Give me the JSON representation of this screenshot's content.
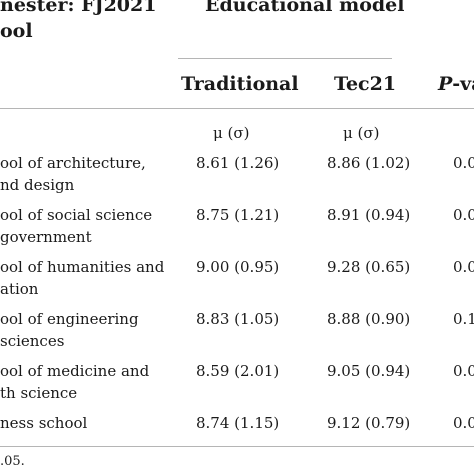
{
  "header": {
    "semester_label": "nester: FJ2021",
    "school_label": "ool",
    "group_label": "Educational model",
    "col_traditional": "Traditional",
    "col_tec21": "Tec21",
    "col_pval_prefix": "P",
    "col_pval_suffix": "-va"
  },
  "stats": {
    "traditional": "μ (σ)",
    "tec21": "μ (σ)"
  },
  "rows": [
    {
      "line1": "ool of architecture,",
      "line2": "nd design",
      "traditional": "8.61 (1.26)",
      "tec21": "8.86 (1.02)",
      "pvalue": "0.0"
    },
    {
      "line1": "ool of social science",
      "line2": "government",
      "traditional": "8.75 (1.21)",
      "tec21": "8.91 (0.94)",
      "pvalue": "0.0"
    },
    {
      "line1": "ool of humanities and",
      "line2": "ation",
      "traditional": "9.00 (0.95)",
      "tec21": "9.28 (0.65)",
      "pvalue": "0.0"
    },
    {
      "line1": "ool of engineering",
      "line2": "sciences",
      "traditional": "8.83 (1.05)",
      "tec21": "8.88 (0.90)",
      "pvalue": "0.1"
    },
    {
      "line1": "ool of medicine and",
      "line2": "th science",
      "traditional": "8.59 (2.01)",
      "tec21": "9.05 (0.94)",
      "pvalue": "0.0"
    },
    {
      "line1": "ness school",
      "line2": "",
      "traditional": "8.74 (1.15)",
      "tec21": "9.12 (0.79)",
      "pvalue": "0.0"
    }
  ],
  "footnote": ".05."
}
